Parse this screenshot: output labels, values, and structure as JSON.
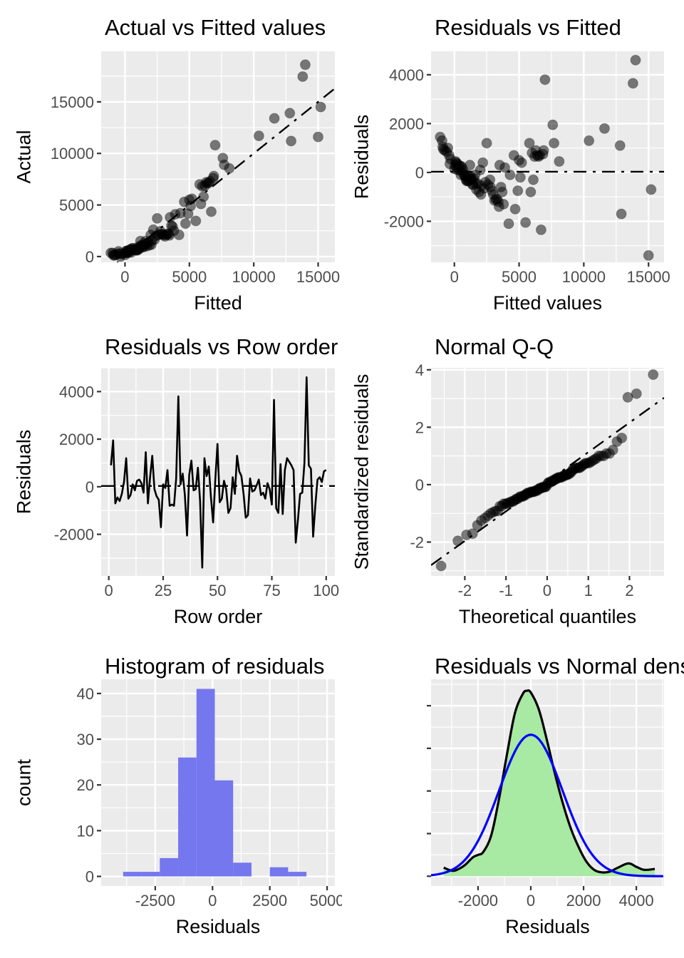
{
  "style": {
    "panel_bg": "#EBEBEB",
    "grid_color": "#FFFFFF",
    "tick_color": "#333333",
    "tick_label_color": "#4D4D4D",
    "point_color": "rgba(0,0,0,0.5)",
    "ref_line_color": "#000000",
    "series_line_color": "#000000",
    "hist_fill": "#7477ED",
    "density_fill": "#A8E9A3",
    "density_line": "#000000",
    "normal_line": "#0000FF"
  },
  "model_points": {
    "n": 100,
    "sigma": 1200,
    "fitted": [
      6900,
      7600,
      15200,
      1800,
      2800,
      900,
      3900,
      7700,
      1400,
      950,
      400,
      850,
      450,
      350,
      650,
      1300,
      -1100,
      1700,
      150,
      10400,
      1000,
      2400,
      2100,
      12900,
      250,
      700,
      -400,
      1900,
      4900,
      3700,
      -350,
      7000,
      2000,
      -300,
      1100,
      5500,
      5000,
      12800,
      800,
      1600,
      6000,
      3600,
      15000,
      5800,
      8100,
      -600,
      1650,
      4700,
      3500,
      11600,
      2300,
      2600,
      550,
      4300,
      3200,
      3000,
      5200,
      2750,
      -950,
      6200,
      100,
      6100,
      3800,
      3400,
      200,
      5100,
      1250,
      600,
      50,
      1050,
      1150,
      1450,
      0,
      500,
      2900,
      13800,
      2050,
      3300,
      -850,
      3100,
      4600,
      2500,
      -900,
      -750,
      6600,
      6700,
      3450,
      1350,
      1500,
      -500,
      14000,
      6300,
      6850,
      4200,
      5900,
      1200,
      2200,
      175,
      6500,
      6400
    ],
    "residuals": [
      900,
      1950,
      -700,
      -450,
      -600,
      -300,
      200,
      1200,
      -500,
      -350,
      100,
      -150,
      250,
      300,
      150,
      -250,
      1450,
      -700,
      400,
      1300,
      -100,
      -400,
      -550,
      -1700,
      100,
      -50,
      700,
      -800,
      -750,
      -800,
      350,
      3800,
      100,
      550,
      -350,
      -2050,
      500,
      1100,
      -150,
      -100,
      800,
      -600,
      -3400,
      1200,
      450,
      850,
      -450,
      -1500,
      300,
      1800,
      -650,
      -500,
      250,
      -100,
      -1100,
      -900,
      400,
      -300,
      1300,
      650,
      450,
      -300,
      -1300,
      -1200,
      350,
      -200,
      -150,
      50,
      300,
      -350,
      -250,
      -500,
      150,
      -100,
      -750,
      3650,
      -900,
      -1100,
      950,
      -1150,
      700,
      1200,
      1050,
      900,
      700,
      -2350,
      -1400,
      -300,
      -250,
      1000,
      4600,
      900,
      750,
      -2100,
      -800,
      300,
      400,
      200,
      650,
      700
    ]
  },
  "chart_data": [
    {
      "id": "actual-vs-fitted",
      "type": "scatter",
      "title": "Actual vs Fitted values",
      "xlabel": "Fitted",
      "ylabel": "Actual",
      "xlim": [
        -1850,
        16300
      ],
      "ylim": [
        -560,
        19900
      ],
      "xticks": [
        0,
        5000,
        10000,
        15000
      ],
      "yticks": [
        0,
        5000,
        10000,
        15000
      ],
      "xminor": 2500,
      "yminor": 2500,
      "x_source": "fitted",
      "y_source": "actual",
      "refline": {
        "slope": 1,
        "intercept": 0,
        "style": "dotdash"
      }
    },
    {
      "id": "residuals-vs-fitted",
      "type": "scatter",
      "title": "Residuals vs Fitted",
      "xlabel": "Fitted values",
      "ylabel": "Residuals",
      "xlim": [
        -1800,
        16200
      ],
      "ylim": [
        -3680,
        4960
      ],
      "xticks": [
        0,
        5000,
        10000,
        15000
      ],
      "yticks": [
        -2000,
        0,
        2000,
        4000
      ],
      "xminor": 2500,
      "yminor": 1000,
      "x_source": "fitted",
      "y_source": "residual",
      "refline": {
        "slope": 0,
        "intercept": 30,
        "style": "dotdash"
      }
    },
    {
      "id": "residuals-vs-row-order",
      "type": "line",
      "title": "Residuals vs Row order",
      "xlabel": "Row order",
      "ylabel": "Residuals",
      "xlim": [
        -3.5,
        104
      ],
      "ylim": [
        -3750,
        5000
      ],
      "xticks": [
        0,
        25,
        50,
        75,
        100
      ],
      "yticks": [
        -2000,
        0,
        2000,
        4000
      ],
      "xminor": 12.5,
      "yminor": 1000,
      "x_source": "row",
      "y_source": "residual",
      "refline": {
        "slope": 0,
        "intercept": 30,
        "style": "dotdash"
      }
    },
    {
      "id": "normal-qq",
      "type": "qq",
      "title": "Normal Q-Q",
      "xlabel": "Theoretical quantiles",
      "ylabel": "Standardized residuals",
      "xlim": [
        -2.82,
        2.84
      ],
      "ylim": [
        -3.18,
        4.07
      ],
      "xticks": [
        -2,
        -1,
        0,
        1,
        2
      ],
      "yticks": [
        -2,
        0,
        2,
        4
      ],
      "xminor": 0.5,
      "yminor": 1,
      "y_source": "standardized residuals = residuals / sigma, sorted",
      "refline": {
        "slope": 1.03,
        "intercept": 0.1,
        "style": "dotdash"
      }
    },
    {
      "id": "histogram-of-residuals",
      "type": "histogram",
      "title": "Histogram of residuals",
      "xlabel": "Residuals",
      "ylabel": "count",
      "xlim": [
        -4860,
        5340
      ],
      "ylim": [
        -2.1,
        43.1
      ],
      "xticks": [
        -2500,
        0,
        2500,
        5000
      ],
      "yticks": [
        0,
        10,
        20,
        30,
        40
      ],
      "xminor": 1250,
      "yminor": 5,
      "bin_start": -3900,
      "bin_width": 800,
      "counts": [
        1,
        1,
        4,
        26,
        41,
        21,
        3,
        0,
        2,
        1
      ]
    },
    {
      "id": "residuals-vs-normal-density",
      "type": "density",
      "title": "Residuals vs Normal density",
      "xlabel": "Residuals",
      "ylabel": "",
      "xlim": [
        -3780,
        5050
      ],
      "ylim": [
        -0.23,
        4.62
      ],
      "xticks": [
        -2000,
        0,
        2000,
        4000
      ],
      "yticks": [
        0,
        1,
        2,
        3,
        4
      ],
      "ytick_labels_hidden": true,
      "xminor": 1000,
      "yminor": 0.5,
      "y_units": "1e-4",
      "density_x": [
        -3300,
        -3000,
        -2800,
        -2500,
        -2200,
        -2000,
        -1800,
        -1500,
        -1200,
        -900,
        -600,
        -300,
        -150,
        0,
        300,
        600,
        900,
        1200,
        1500,
        1800,
        2100,
        2400,
        2700,
        3000,
        3300,
        3700,
        4000,
        4300,
        4700
      ],
      "density_y": [
        0.2,
        0.13,
        0.15,
        0.26,
        0.44,
        0.5,
        0.57,
        0.96,
        1.83,
        2.87,
        3.83,
        4.28,
        4.35,
        4.31,
        3.92,
        3.22,
        2.44,
        1.74,
        1.15,
        0.7,
        0.35,
        0.15,
        0.09,
        0.11,
        0.2,
        0.3,
        0.22,
        0.15,
        0.17
      ],
      "normal_curve": {
        "mean": 0,
        "sd": 1200,
        "peak": 3.32
      }
    }
  ]
}
